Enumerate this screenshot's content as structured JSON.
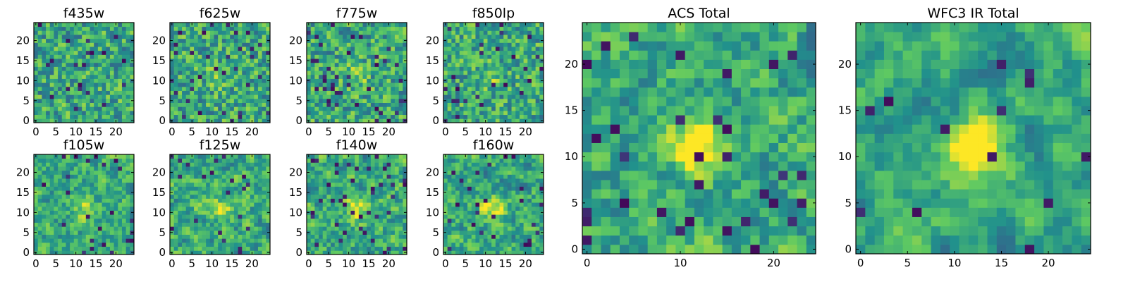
{
  "colormap": [
    "#440154",
    "#3b528b",
    "#21918c",
    "#5ec962",
    "#fde725"
  ],
  "chart_data": [
    {
      "type": "heatmap",
      "title": "f435w",
      "size": [
        25,
        25
      ],
      "seed": 11,
      "smooth": 0,
      "hotspot": 0.0,
      "dark_fraction": 0.03,
      "xticks": [
        0,
        5,
        10,
        15,
        20
      ],
      "yticks": [
        0,
        5,
        10,
        15,
        20
      ],
      "xlim": [
        -0.5,
        24.5
      ],
      "ylim": [
        -0.5,
        24.5
      ]
    },
    {
      "type": "heatmap",
      "title": "f625w",
      "size": [
        25,
        25
      ],
      "seed": 23,
      "smooth": 0,
      "hotspot": 0.15,
      "dark_fraction": 0.05,
      "xticks": [
        0,
        5,
        10,
        15,
        20
      ],
      "yticks": [
        0,
        5,
        10,
        15,
        20
      ],
      "xlim": [
        -0.5,
        24.5
      ],
      "ylim": [
        -0.5,
        24.5
      ]
    },
    {
      "type": "heatmap",
      "title": "f775w",
      "size": [
        25,
        25
      ],
      "seed": 37,
      "smooth": 0,
      "hotspot": 0.2,
      "dark_fraction": 0.06,
      "xticks": [
        0,
        5,
        10,
        15,
        20
      ],
      "yticks": [
        0,
        5,
        10,
        15,
        20
      ],
      "xlim": [
        -0.5,
        24.5
      ],
      "ylim": [
        -0.5,
        24.5
      ]
    },
    {
      "type": "heatmap",
      "title": "f850lp",
      "size": [
        25,
        25
      ],
      "seed": 41,
      "smooth": 0,
      "hotspot": 0.15,
      "dark_fraction": 0.06,
      "xticks": [
        0,
        5,
        10,
        15,
        20
      ],
      "yticks": [
        0,
        5,
        10,
        15,
        20
      ],
      "xlim": [
        -0.5,
        24.5
      ],
      "ylim": [
        -0.5,
        24.5
      ]
    },
    {
      "type": "heatmap",
      "title": "ACS Total",
      "size": [
        25,
        25
      ],
      "seed": 53,
      "smooth": 1,
      "hotspot": 0.5,
      "dark_fraction": 0.04,
      "xticks": [
        0,
        10,
        20
      ],
      "yticks": [
        0,
        5,
        10,
        15,
        20
      ],
      "xlim": [
        -0.5,
        24.5
      ],
      "ylim": [
        -0.5,
        24.5
      ]
    },
    {
      "type": "heatmap",
      "title": "f105w",
      "size": [
        25,
        25
      ],
      "seed": 61,
      "smooth": 1,
      "hotspot": 0.25,
      "dark_fraction": 0.04,
      "xticks": [
        0,
        5,
        10,
        15,
        20
      ],
      "yticks": [
        0,
        5,
        10,
        15,
        20
      ],
      "xlim": [
        -0.5,
        24.5
      ],
      "ylim": [
        -0.5,
        24.5
      ]
    },
    {
      "type": "heatmap",
      "title": "f125w",
      "size": [
        25,
        25
      ],
      "seed": 73,
      "smooth": 1,
      "hotspot": 0.3,
      "dark_fraction": 0.04,
      "xticks": [
        0,
        5,
        10,
        15,
        20
      ],
      "yticks": [
        0,
        5,
        10,
        15,
        20
      ],
      "xlim": [
        -0.5,
        24.5
      ],
      "ylim": [
        -0.5,
        24.5
      ]
    },
    {
      "type": "heatmap",
      "title": "f140w",
      "size": [
        25,
        25
      ],
      "seed": 89,
      "smooth": 1,
      "hotspot": 0.35,
      "dark_fraction": 0.05,
      "xticks": [
        0,
        5,
        10,
        15,
        20
      ],
      "yticks": [
        0,
        5,
        10,
        15,
        20
      ],
      "xlim": [
        -0.5,
        24.5
      ],
      "ylim": [
        -0.5,
        24.5
      ]
    },
    {
      "type": "heatmap",
      "title": "f160w",
      "size": [
        25,
        25
      ],
      "seed": 97,
      "smooth": 1,
      "hotspot": 0.4,
      "dark_fraction": 0.05,
      "xticks": [
        0,
        5,
        10,
        15,
        20
      ],
      "yticks": [
        0,
        5,
        10,
        15,
        20
      ],
      "xlim": [
        -0.5,
        24.5
      ],
      "ylim": [
        -0.5,
        24.5
      ]
    },
    {
      "type": "heatmap",
      "title": "WFC3 IR Total",
      "size": [
        25,
        25
      ],
      "seed": 101,
      "smooth": 2,
      "hotspot": 0.6,
      "dark_fraction": 0.03,
      "xticks": [
        0,
        5,
        10,
        15,
        20
      ],
      "yticks": [
        0,
        5,
        10,
        15,
        20
      ],
      "xlim": [
        -0.5,
        24.5
      ],
      "ylim": [
        -0.5,
        24.5
      ]
    }
  ]
}
